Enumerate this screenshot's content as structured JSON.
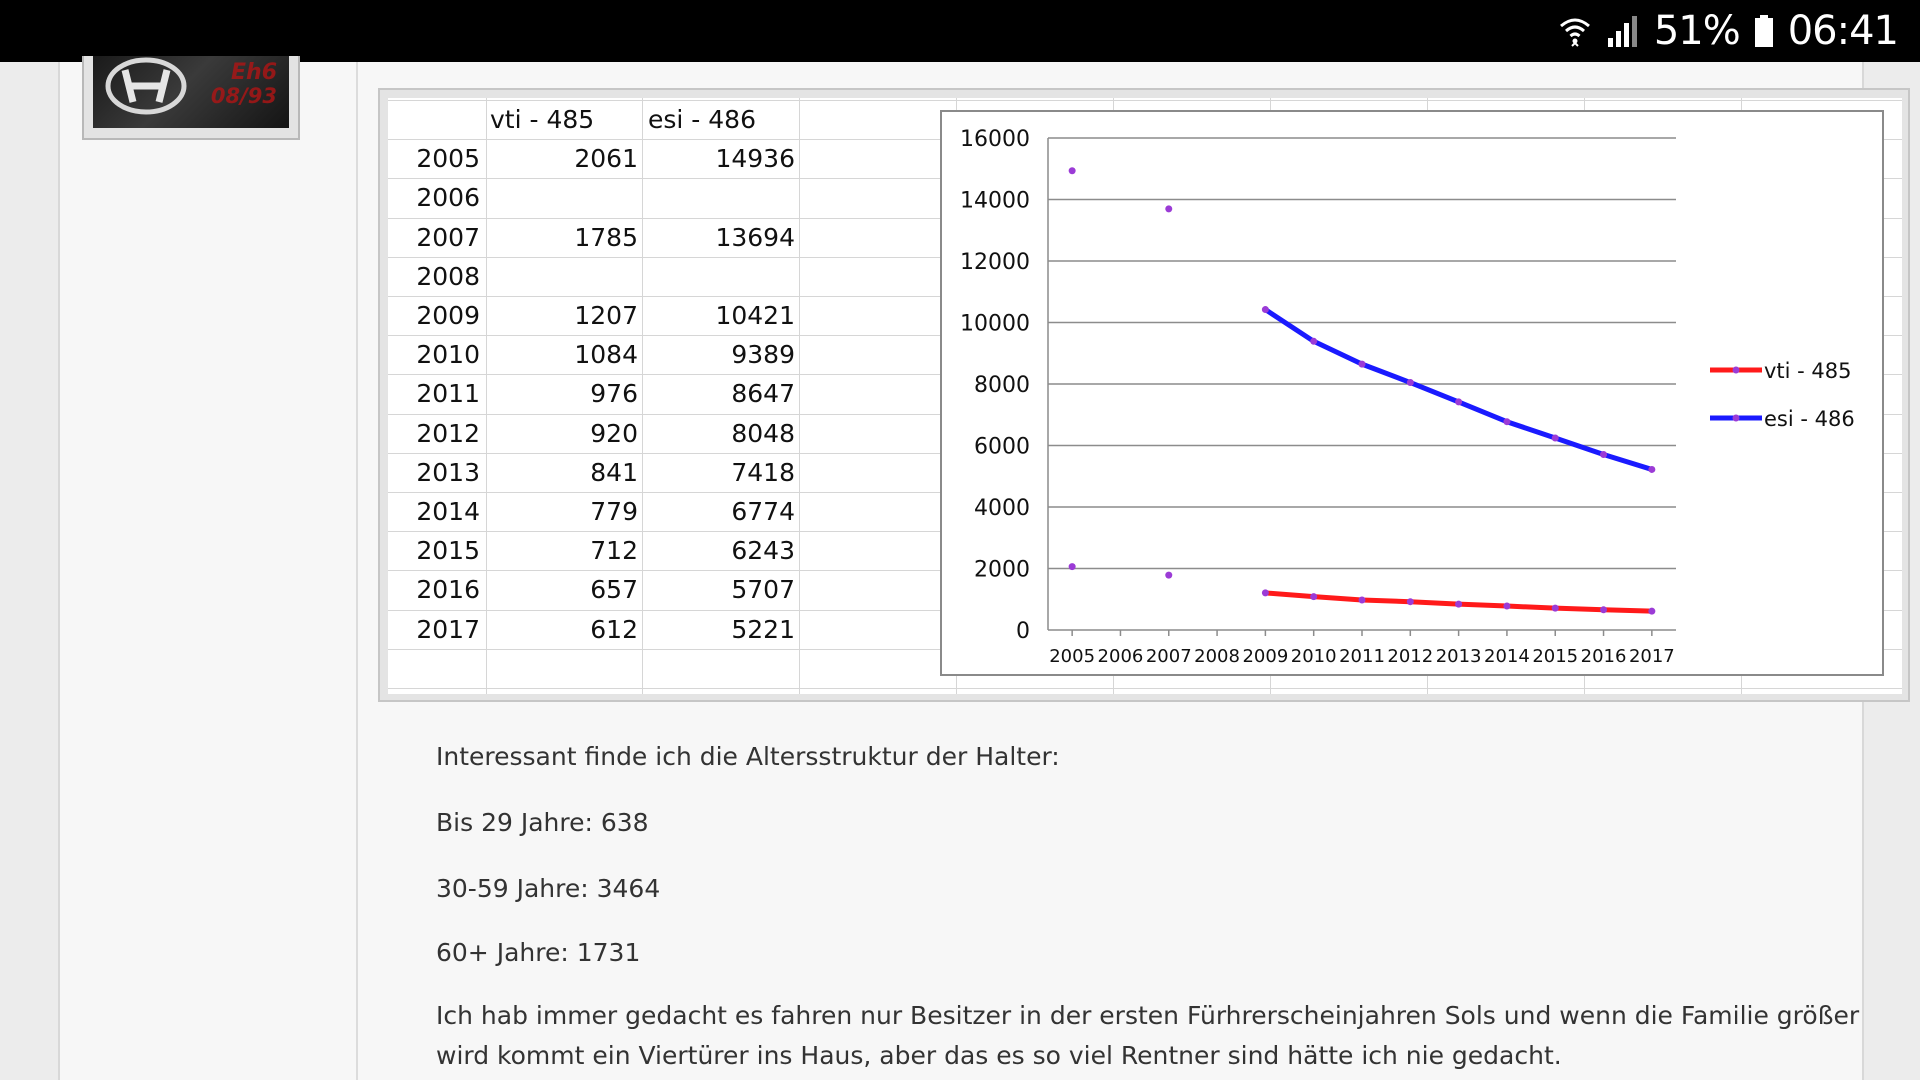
{
  "statusbar": {
    "battery": "51%",
    "time": "06:41",
    "icons": [
      "wifi-icon",
      "signal-icon",
      "battery-icon"
    ]
  },
  "avatar": {
    "logo": "honda-logo-icon",
    "line1": "Eh6",
    "line2": "08/93"
  },
  "table": {
    "headers": [
      "",
      "vti - 485",
      "esi - 486"
    ],
    "rows": [
      {
        "year": "2005",
        "vti": "2061",
        "esi": "14936"
      },
      {
        "year": "2006",
        "vti": "",
        "esi": ""
      },
      {
        "year": "2007",
        "vti": "1785",
        "esi": "13694"
      },
      {
        "year": "2008",
        "vti": "",
        "esi": ""
      },
      {
        "year": "2009",
        "vti": "1207",
        "esi": "10421"
      },
      {
        "year": "2010",
        "vti": "1084",
        "esi": "9389"
      },
      {
        "year": "2011",
        "vti": "976",
        "esi": "8647"
      },
      {
        "year": "2012",
        "vti": "920",
        "esi": "8048"
      },
      {
        "year": "2013",
        "vti": "841",
        "esi": "7418"
      },
      {
        "year": "2014",
        "vti": "779",
        "esi": "6774"
      },
      {
        "year": "2015",
        "vti": "712",
        "esi": "6243"
      },
      {
        "year": "2016",
        "vti": "657",
        "esi": "5707"
      },
      {
        "year": "2017",
        "vti": "612",
        "esi": "5221"
      }
    ]
  },
  "chart_data": {
    "type": "line",
    "categories": [
      "2005",
      "2006",
      "2007",
      "2008",
      "2009",
      "2010",
      "2011",
      "2012",
      "2013",
      "2014",
      "2015",
      "2016",
      "2017"
    ],
    "series": [
      {
        "name": "vti - 485",
        "color": "#ff1a1a",
        "values": [
          2061,
          null,
          1785,
          null,
          1207,
          1084,
          976,
          920,
          841,
          779,
          712,
          657,
          612
        ]
      },
      {
        "name": "esi - 486",
        "color": "#1a1aff",
        "values": [
          14936,
          null,
          13694,
          null,
          10421,
          9389,
          8647,
          8048,
          7418,
          6774,
          6243,
          5707,
          5221
        ]
      }
    ],
    "yticks": [
      "0",
      "2000",
      "4000",
      "6000",
      "8000",
      "10000",
      "12000",
      "14000",
      "16000"
    ],
    "ylim": [
      0,
      16000
    ],
    "grid": true,
    "legend": "right",
    "marker_color": "#9b3bd6"
  },
  "post": {
    "intro": "Interessant finde ich die Altersstruktur der Halter:",
    "age1": "Bis 29 Jahre:  638",
    "age2": "30-59 Jahre:   3464",
    "age3": "60+ Jahre:      1731",
    "closing": "Ich hab immer gedacht es fahren nur Besitzer in der ersten Fürhrerscheinjahren Sols und wenn die Familie größer wird kommt ein Viertürer ins Haus, aber das es so viel Rentner sind hätte ich nie gedacht."
  }
}
